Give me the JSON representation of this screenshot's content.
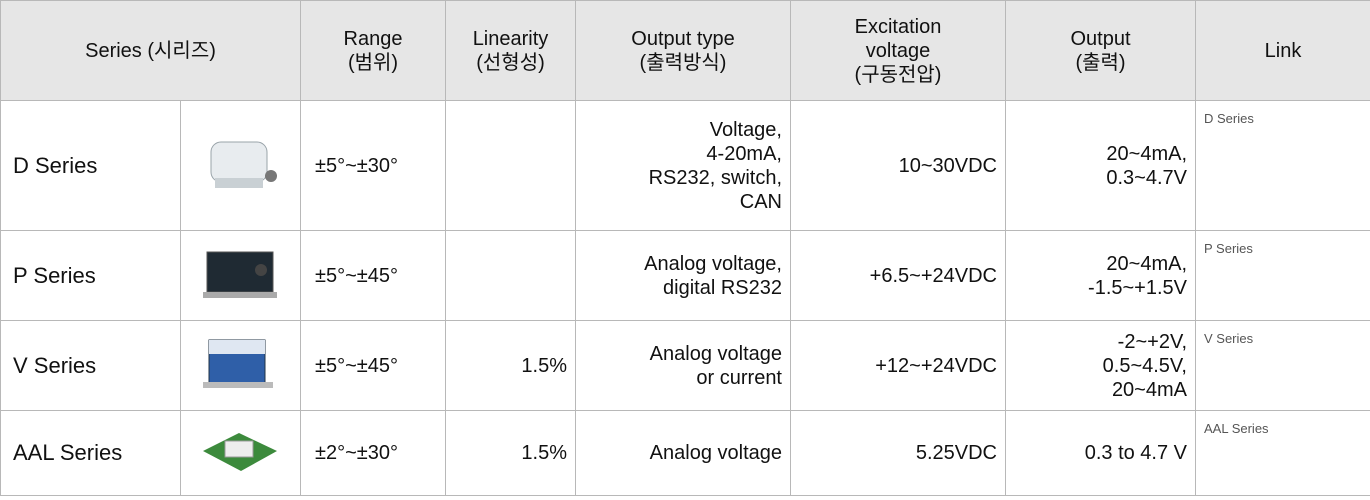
{
  "table": {
    "header": [
      "Series (시리즈)",
      "Range\n(범위)",
      "Linearity\n(선형성)",
      "Output type\n(출력방식)",
      "Excitation\nvoltage\n(구동전압)",
      "Output\n(출력)",
      "Link"
    ],
    "rows": [
      [
        "D Series",
        "±5°~±30°",
        null,
        "Voltage,\n4-20mA,\nRS232, switch,\nCAN",
        "10~30VDC",
        "20~4mA,\n0.3~4.7V",
        "D Series"
      ],
      [
        "P Series",
        "±5°~±45°",
        null,
        "Analog voltage,\ndigital RS232",
        "+6.5~+24VDC",
        "20~4mA,\n-1.5~+1.5V",
        "P Series"
      ],
      [
        "V Series",
        "±5°~±45°",
        "1.5%",
        "Analog voltage\nor current",
        "+12~+24VDC",
        "-2~+2V,\n0.5~4.5V,\n20~4mA",
        "V Series"
      ],
      [
        "AAL Series",
        "±2°~±30°",
        "1.5%",
        "Analog voltage",
        "5.25VDC",
        "0.3 to 4.7 V",
        "AAL Series"
      ]
    ]
  }
}
